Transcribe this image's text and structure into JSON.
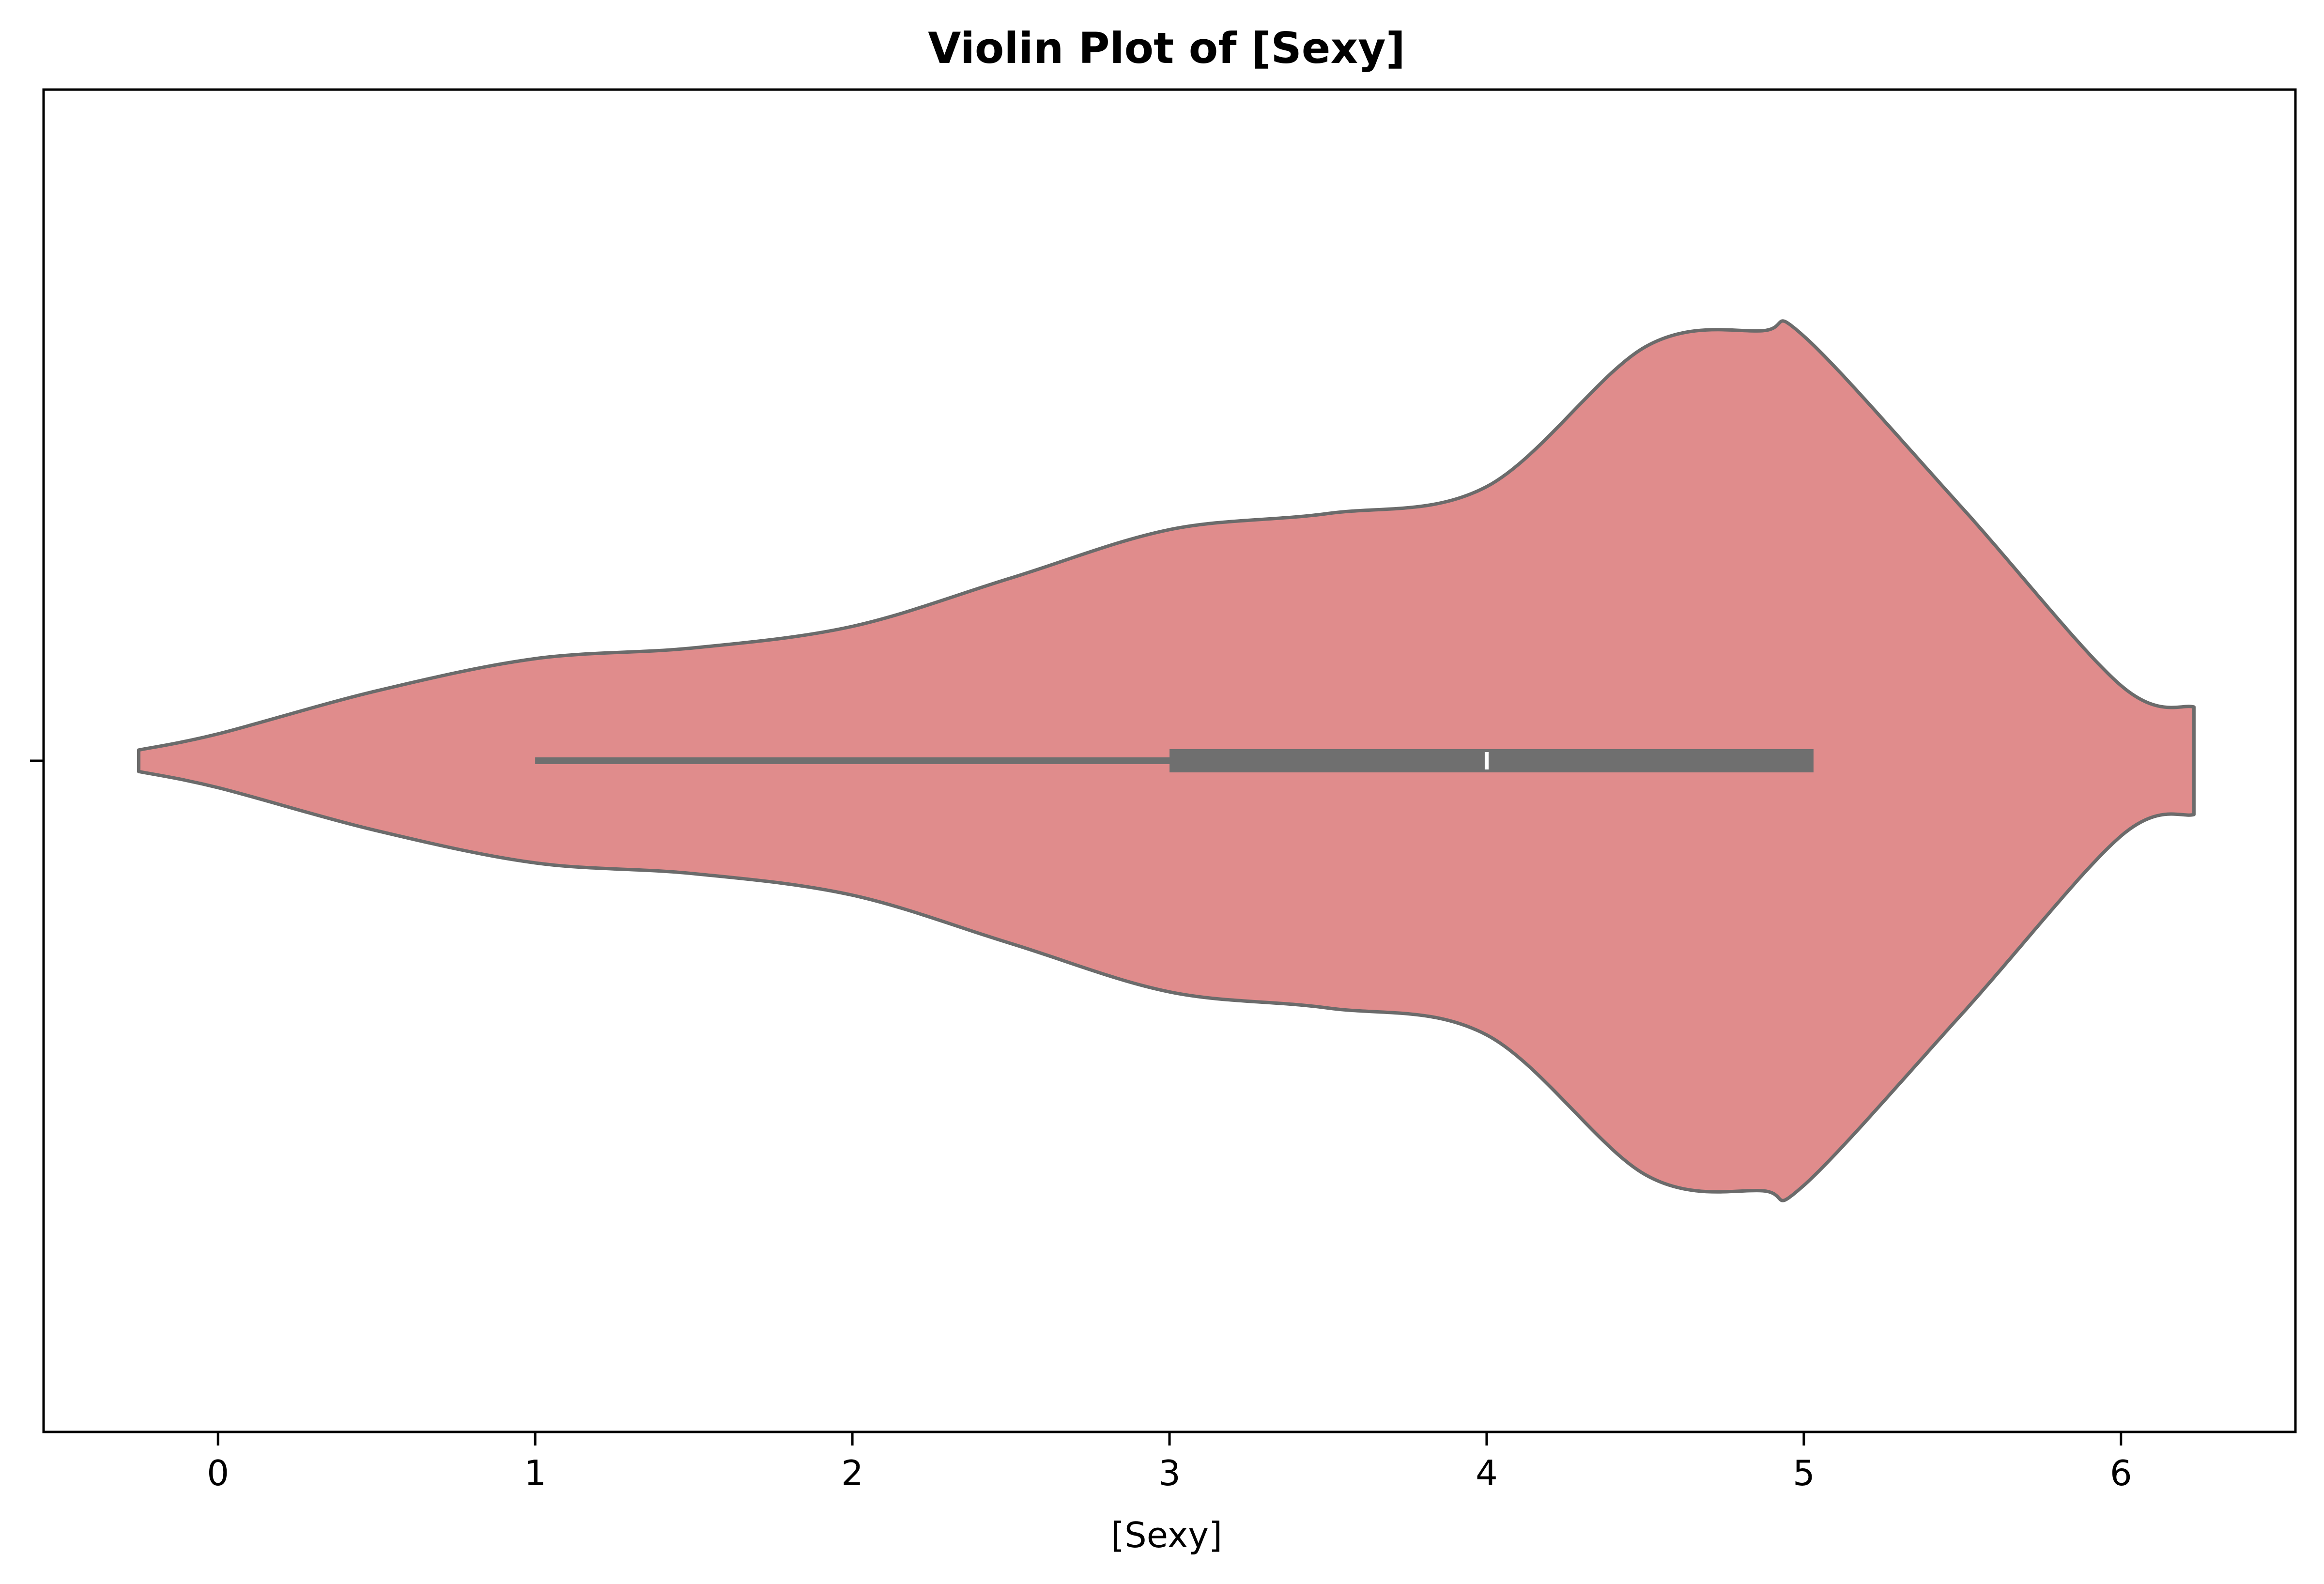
{
  "chart_data": {
    "type": "violin",
    "title": "Violin Plot of [Sexy]",
    "xlabel": "[Sexy]",
    "ylabel": "",
    "xlim": [
      -0.55,
      6.55
    ],
    "xticks": [
      0,
      1,
      2,
      3,
      4,
      5,
      6
    ],
    "xtick_labels": [
      "0",
      "1",
      "2",
      "3",
      "4",
      "5",
      "6"
    ],
    "grid": false,
    "colors": {
      "violin_fill": "#e08c8c",
      "violin_edge": "#6b6b6b",
      "box": "#6f6f6f",
      "median": "#ffffff"
    },
    "violin": {
      "density_x": [
        -0.25,
        0.0,
        0.5,
        1.0,
        1.5,
        2.0,
        2.5,
        3.0,
        3.5,
        4.0,
        4.5,
        4.87,
        5.0,
        5.5,
        6.0,
        6.23
      ],
      "density_half_width": [
        0.02,
        0.05,
        0.13,
        0.19,
        0.21,
        0.25,
        0.34,
        0.43,
        0.46,
        0.51,
        0.77,
        0.8,
        0.79,
        0.47,
        0.14,
        0.1
      ],
      "whisker_low": 1.0,
      "q1": 3.0,
      "median": 4.0,
      "q3": 5.0,
      "whisker_high": 5.0
    }
  }
}
